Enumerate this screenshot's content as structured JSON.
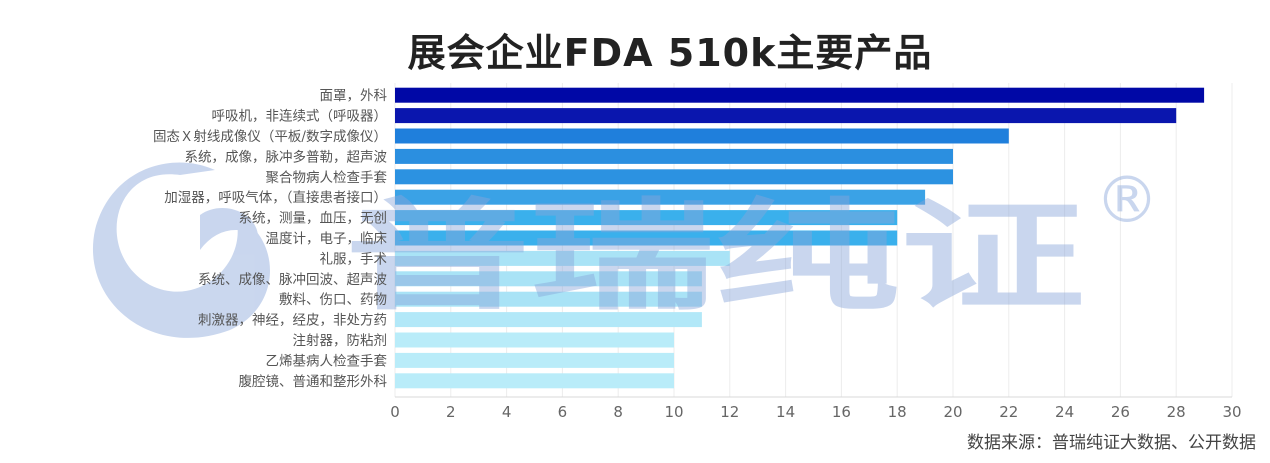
{
  "chart_data": {
    "type": "bar",
    "orientation": "horizontal",
    "title": "展会企业FDA 510k主要产品",
    "categories": [
      "面罩，外科",
      "呼吸机，非连续式（呼吸器）",
      "固态Ｘ射线成像仪（平板/数字成像仪）",
      "系统，成像，脉冲多普勒，超声波",
      "聚合物病人检查手套",
      "加湿器，呼吸气体，（直接患者接口）",
      "系统，测量，血压，无创",
      "温度计，电子，临床",
      "礼服，手术",
      "系统、成像、脉冲回波、超声波",
      "敷料、伤口、药物",
      "刺激器，神经，经皮，非处方药",
      "注射器，防粘剂",
      "乙烯基病人检查手套",
      "腹腔镜、普通和整形外科"
    ],
    "values": [
      29,
      28,
      22,
      20,
      20,
      19,
      18,
      18,
      12,
      11,
      11,
      11,
      10,
      10,
      10
    ],
    "colors": [
      "#0008a6",
      "#0a16ae",
      "#1f7fdc",
      "#2b8fe0",
      "#2c92e1",
      "#3aa2e6",
      "#3ab0ec",
      "#3ab0ec",
      "#a9e3f6",
      "#a9e3f6",
      "#a9e3f6",
      "#b2e8f8",
      "#b9ecf9",
      "#b9ecf9",
      "#b9ecf9"
    ],
    "xlim": [
      0,
      30
    ],
    "xticks": [
      0,
      2,
      4,
      6,
      8,
      10,
      12,
      14,
      16,
      18,
      20,
      22,
      24,
      26,
      28,
      30
    ],
    "grid": true,
    "xlabel": "",
    "ylabel": ""
  },
  "source_note": "数据来源：普瑞纯证大数据、公开数据",
  "watermark": {
    "text": "普瑞纯证",
    "symbol": "®",
    "color": "#8aa6da"
  }
}
